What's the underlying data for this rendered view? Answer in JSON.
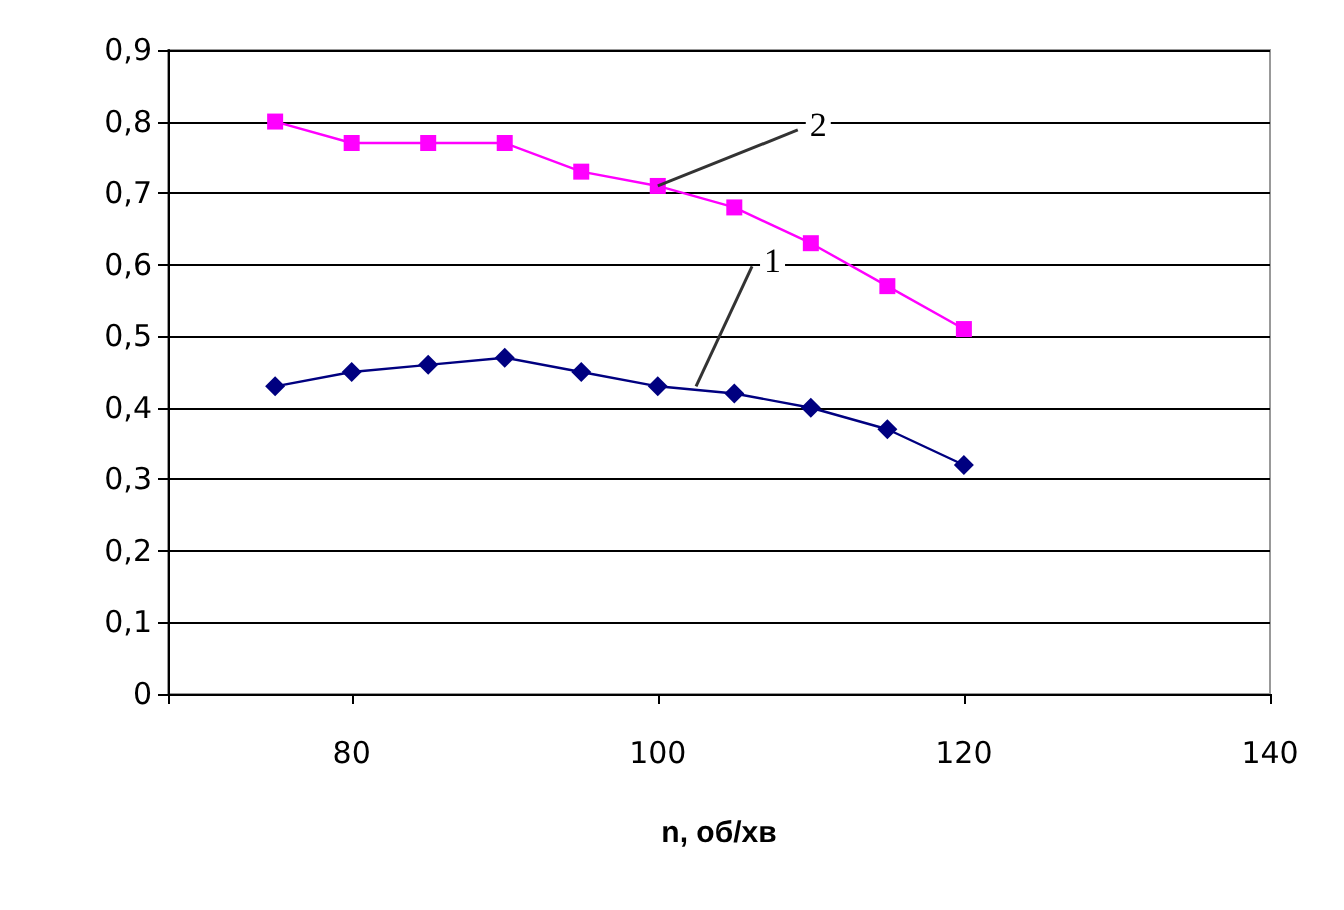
{
  "chart_data": {
    "type": "line",
    "xlabel": "n, об/хв",
    "x": [
      75,
      80,
      85,
      90,
      95,
      100,
      105,
      110,
      115,
      120
    ],
    "series": [
      {
        "color": "#000080",
        "marker": "diamond",
        "values": [
          0.43,
          0.45,
          0.46,
          0.47,
          0.45,
          0.43,
          0.42,
          0.4,
          0.37,
          0.32
        ]
      },
      {
        "color": "#ff00ff",
        "marker": "square",
        "values": [
          0.8,
          0.77,
          0.77,
          0.77,
          0.73,
          0.71,
          0.68,
          0.63,
          0.57,
          0.51
        ]
      }
    ],
    "xlim": [
      68,
      140
    ],
    "xticks": [
      {
        "value": 68,
        "label": null
      },
      80,
      100,
      120,
      140
    ],
    "ylim": [
      0,
      0.9
    ],
    "yticks": [
      0,
      {
        "value": 0.1,
        "label": "0,1"
      },
      {
        "value": 0.2,
        "label": "0,2"
      },
      {
        "value": 0.3,
        "label": "0,3"
      },
      {
        "value": 0.4,
        "label": "0,4"
      },
      {
        "value": 0.5,
        "label": "0,5"
      },
      {
        "value": 0.6,
        "label": "0,6"
      },
      {
        "value": 0.7,
        "label": "0,7"
      },
      {
        "value": 0.8,
        "label": "0,8"
      },
      {
        "value": 0.9,
        "label": "0,9"
      }
    ],
    "grid": "y",
    "line_style": "solid",
    "annotations": [
      {
        "text": "1",
        "x": 102.5,
        "y": 0.43
      },
      {
        "text": "2",
        "x": 100,
        "y": 0.71
      }
    ]
  }
}
